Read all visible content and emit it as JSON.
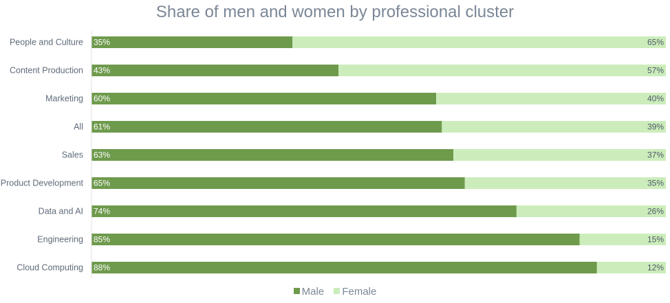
{
  "chart_data": {
    "type": "bar",
    "orientation": "horizontal",
    "stacked": true,
    "title": "Share of men and women by professional cluster",
    "categories": [
      "People and Culture",
      "Content Production",
      "Marketing",
      "All",
      "Sales",
      "Product Development",
      "Data and AI",
      "Engineering",
      "Cloud Computing"
    ],
    "series": [
      {
        "name": "Male",
        "values": [
          35,
          43,
          60,
          61,
          63,
          65,
          74,
          85,
          88
        ],
        "labels": [
          "35%",
          "43%",
          "60%",
          "61%",
          "63%",
          "65%",
          "74%",
          "85%",
          "88%"
        ],
        "color": "#6e9a4c"
      },
      {
        "name": "Female",
        "values": [
          65,
          57,
          40,
          39,
          37,
          35,
          26,
          15,
          12
        ],
        "labels": [
          "65%",
          "57%",
          "40%",
          "39%",
          "37%",
          "35%",
          "26%",
          "15%",
          "12%"
        ],
        "color": "#ccedbb"
      }
    ],
    "xlim": [
      0,
      100
    ],
    "grid": false,
    "legend": "bottom"
  }
}
